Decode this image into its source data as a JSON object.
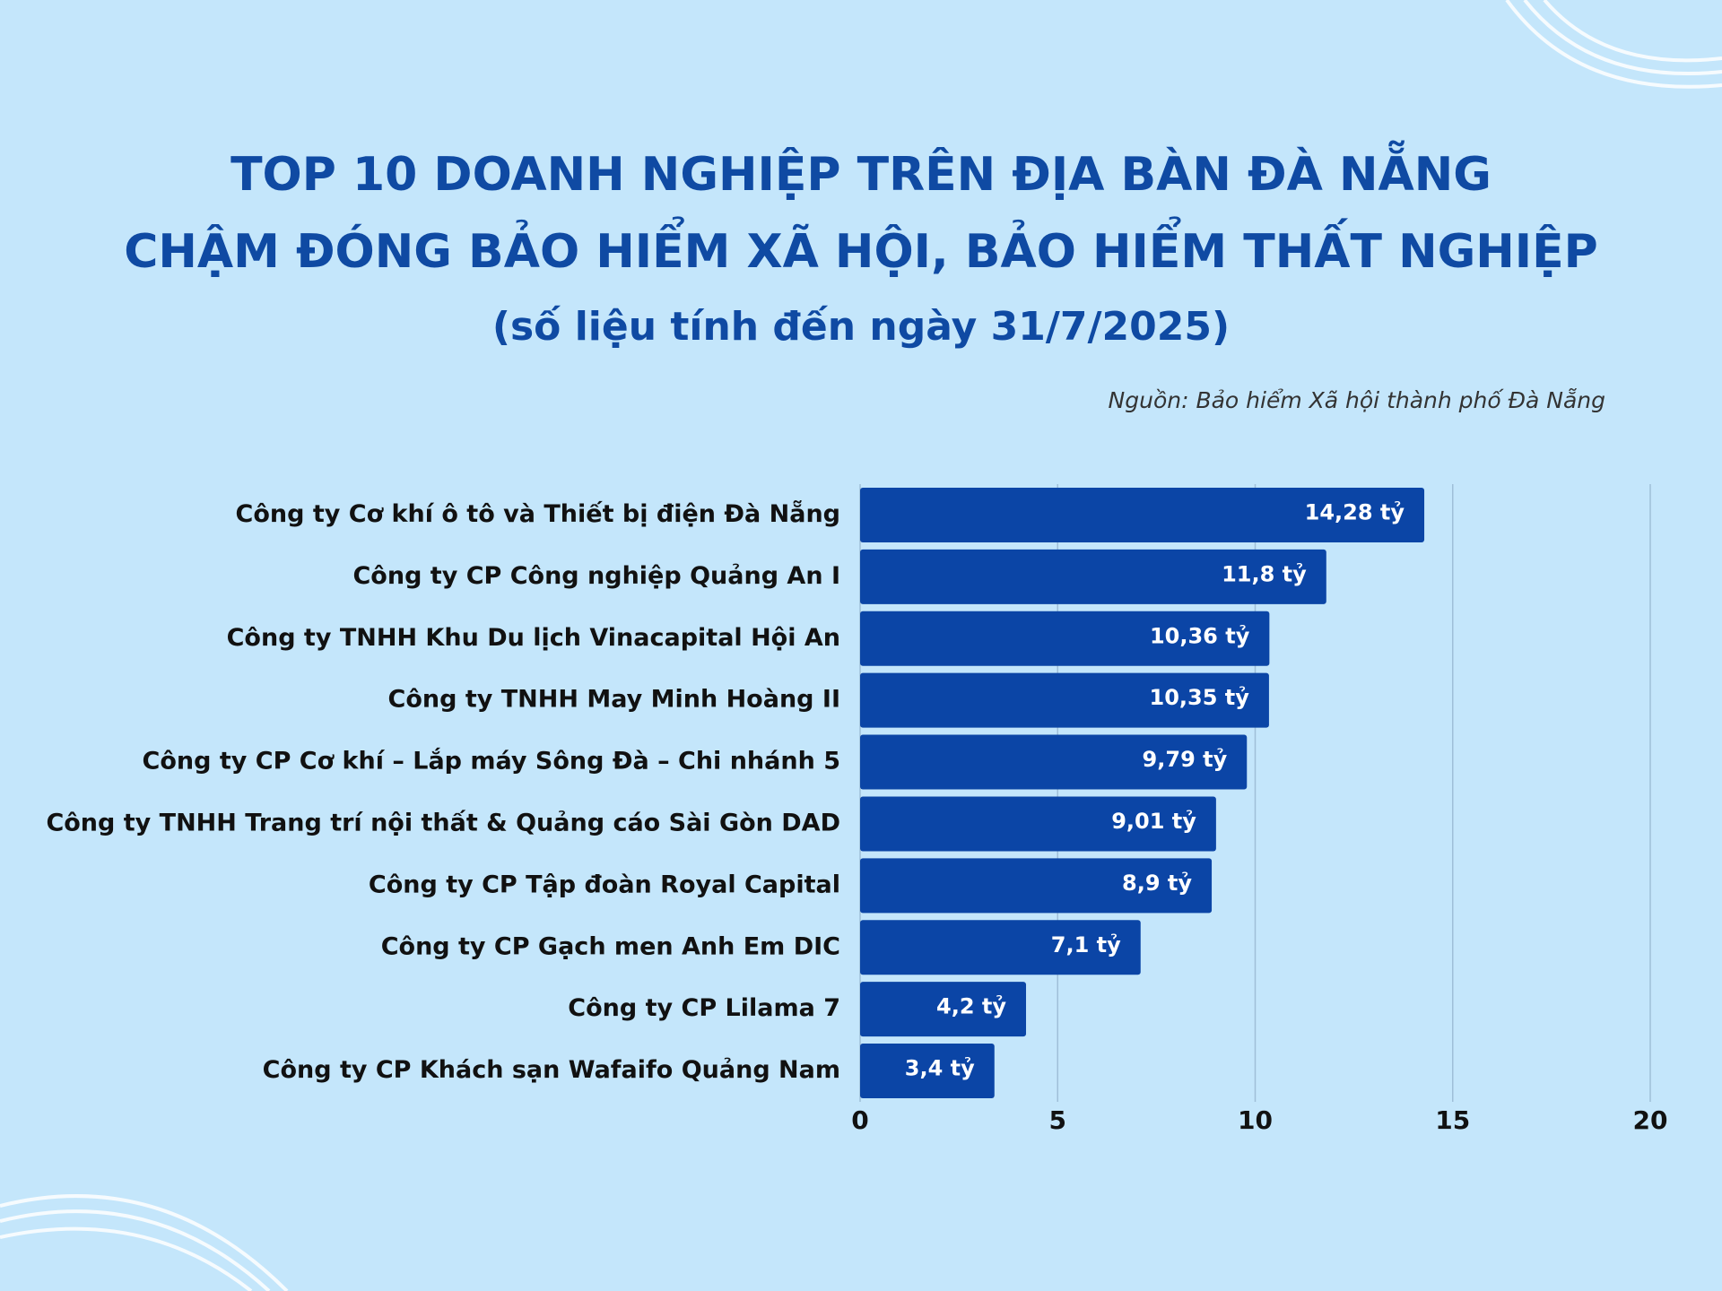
{
  "chart_data": {
    "type": "hbar",
    "title": [
      "TOP 10 DOANH NGHIỆP TRÊN ĐỊA BÀN ĐÀ NẴNG",
      "CHẬM ĐÓNG BẢO HIỂM XÃ HỘI, BẢO HIỂM THẤT NGHIỆP"
    ],
    "subtitle": "(số liệu tính đến ngày 31/7/2025)",
    "source": "Nguồn: Bảo hiểm Xã hội thành phố Đà Nẵng",
    "categories": [
      "Công ty Cơ khí ô tô và Thiết bị điện Đà Nẵng",
      "Công ty CP Công nghiệp Quảng An I",
      "Công ty TNHH Khu Du lịch Vinacapital Hội An",
      "Công ty TNHH May Minh Hoàng II",
      "Công ty CP Cơ khí – Lắp máy Sông Đà – Chi nhánh 5",
      "Công ty TNHH Trang trí nội thất & Quảng cáo Sài Gòn DAD",
      "Công ty CP Tập đoàn Royal Capital",
      "Công ty CP Gạch men Anh Em DIC",
      "Công ty CP Lilama 7",
      "Công ty CP Khách sạn Wafaifo Quảng Nam"
    ],
    "values": [
      14.28,
      11.8,
      10.36,
      10.35,
      9.79,
      9.01,
      8.9,
      7.1,
      4.2,
      3.4
    ],
    "value_labels": [
      "14,28 tỷ",
      "11,8 tỷ",
      "10,36 tỷ",
      "10,35 tỷ",
      "9,79 tỷ",
      "9,01 tỷ",
      "8,9 tỷ",
      "7,1 tỷ",
      "4,2 tỷ",
      "3,4 tỷ"
    ],
    "color": "#0b45a6",
    "xlim": [
      0,
      20
    ],
    "xticks": [
      0,
      5,
      10,
      15,
      20
    ],
    "grid": true
  }
}
